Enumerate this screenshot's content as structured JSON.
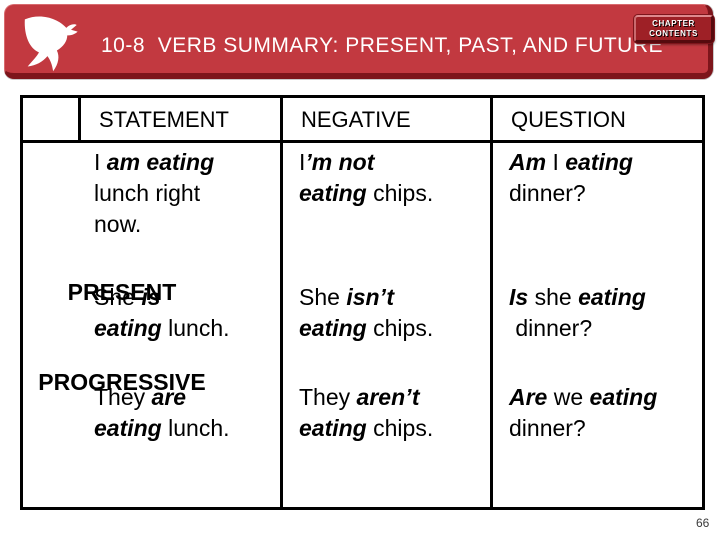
{
  "header": {
    "title": "10-8  VERB SUMMARY: PRESENT, PAST, AND FUTURE",
    "contents_button": {
      "line1": "CHAPTER",
      "line2": "CONTENTS"
    },
    "colors": {
      "bar": "#C23940",
      "bar_shadow": "#7D151B",
      "button_face": "#9E2026"
    }
  },
  "table": {
    "headers": {
      "statement": "STATEMENT",
      "negative": "NEGATIVE",
      "question": "QUESTION"
    },
    "tense_label": {
      "line1": "PRESENT",
      "line2": "PROGRESSIVE"
    },
    "rows": [
      {
        "statement": [
          [
            {
              "t": "I ",
              "s": "r"
            },
            {
              "t": "am eating",
              "s": "bi"
            }
          ],
          [
            {
              "t": "lunch right",
              "s": "r"
            }
          ],
          [
            {
              "t": "now.",
              "s": "r"
            }
          ]
        ],
        "negative": [
          [
            {
              "t": "I",
              "s": "r"
            },
            {
              "t": "’m not",
              "s": "bi"
            }
          ],
          [
            {
              "t": "eating",
              "s": "bi"
            },
            {
              "t": " chips.",
              "s": "r"
            }
          ]
        ],
        "question": [
          [
            {
              "t": "Am",
              "s": "bi"
            },
            {
              "t": " I ",
              "s": "r"
            },
            {
              "t": "eating",
              "s": "bi"
            }
          ],
          [
            {
              "t": "dinner?",
              "s": "r"
            }
          ]
        ]
      },
      {
        "statement": [
          [
            {
              "t": "She ",
              "s": "r"
            },
            {
              "t": "is",
              "s": "bi"
            }
          ],
          [
            {
              "t": "eating",
              "s": "bi"
            },
            {
              "t": " lunch.",
              "s": "r"
            }
          ]
        ],
        "negative": [
          [
            {
              "t": "She ",
              "s": "r"
            },
            {
              "t": "isn’t",
              "s": "bi"
            }
          ],
          [
            {
              "t": "eating",
              "s": "bi"
            },
            {
              "t": " chips.",
              "s": "r"
            }
          ]
        ],
        "question": [
          [
            {
              "t": "Is",
              "s": "bi"
            },
            {
              "t": " she ",
              "s": "r"
            },
            {
              "t": "eating",
              "s": "bi"
            }
          ],
          [
            {
              "t": " dinner?",
              "s": "r"
            }
          ]
        ]
      },
      {
        "statement": [
          [
            {
              "t": "They ",
              "s": "r"
            },
            {
              "t": "are",
              "s": "bi"
            }
          ],
          [
            {
              "t": "eating",
              "s": "bi"
            },
            {
              "t": " lunch.",
              "s": "r"
            }
          ]
        ],
        "negative": [
          [
            {
              "t": "They ",
              "s": "r"
            },
            {
              "t": "aren’t",
              "s": "bi"
            }
          ],
          [
            {
              "t": "eating",
              "s": "bi"
            },
            {
              "t": " chips.",
              "s": "r"
            }
          ]
        ],
        "question": [
          [
            {
              "t": "Are",
              "s": "bi"
            },
            {
              "t": " we ",
              "s": "r"
            },
            {
              "t": "eating",
              "s": "bi"
            }
          ],
          [
            {
              "t": "dinner?",
              "s": "r"
            }
          ]
        ]
      }
    ]
  },
  "footer": {
    "page_number": "66"
  }
}
